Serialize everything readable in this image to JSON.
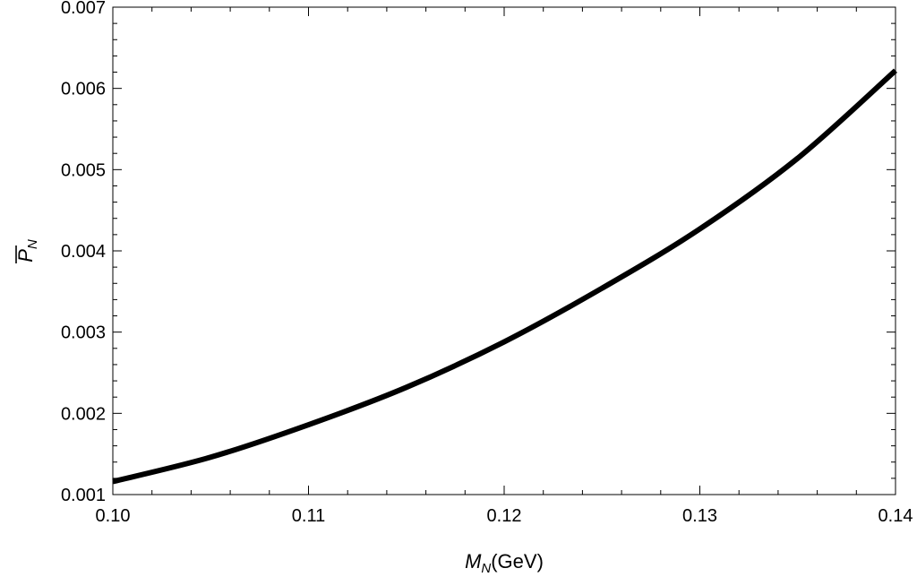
{
  "chart_data": {
    "type": "line",
    "xlabel": "M_N(GeV)",
    "xlabel_main": "M",
    "xlabel_sub": "N",
    "xlabel_unit": "(GeV)",
    "ylabel_main": "P",
    "ylabel_sub": "N",
    "xlim": [
      0.1,
      0.14
    ],
    "ylim": [
      0.001,
      0.007
    ],
    "xticks": [
      "0.10",
      "0.11",
      "0.12",
      "0.13",
      "0.14"
    ],
    "yticks": [
      "0.001",
      "0.002",
      "0.003",
      "0.004",
      "0.005",
      "0.006",
      "0.007"
    ],
    "grid": false,
    "series": [
      {
        "x": [
          0.1,
          0.105,
          0.11,
          0.115,
          0.12,
          0.125,
          0.13,
          0.135,
          0.14
        ],
        "y": [
          0.00116,
          0.00146,
          0.00186,
          0.00232,
          0.00288,
          0.00354,
          0.00427,
          0.00514,
          0.00622
        ]
      }
    ],
    "colors": {
      "line": "#000000",
      "axes": "#000000"
    }
  }
}
